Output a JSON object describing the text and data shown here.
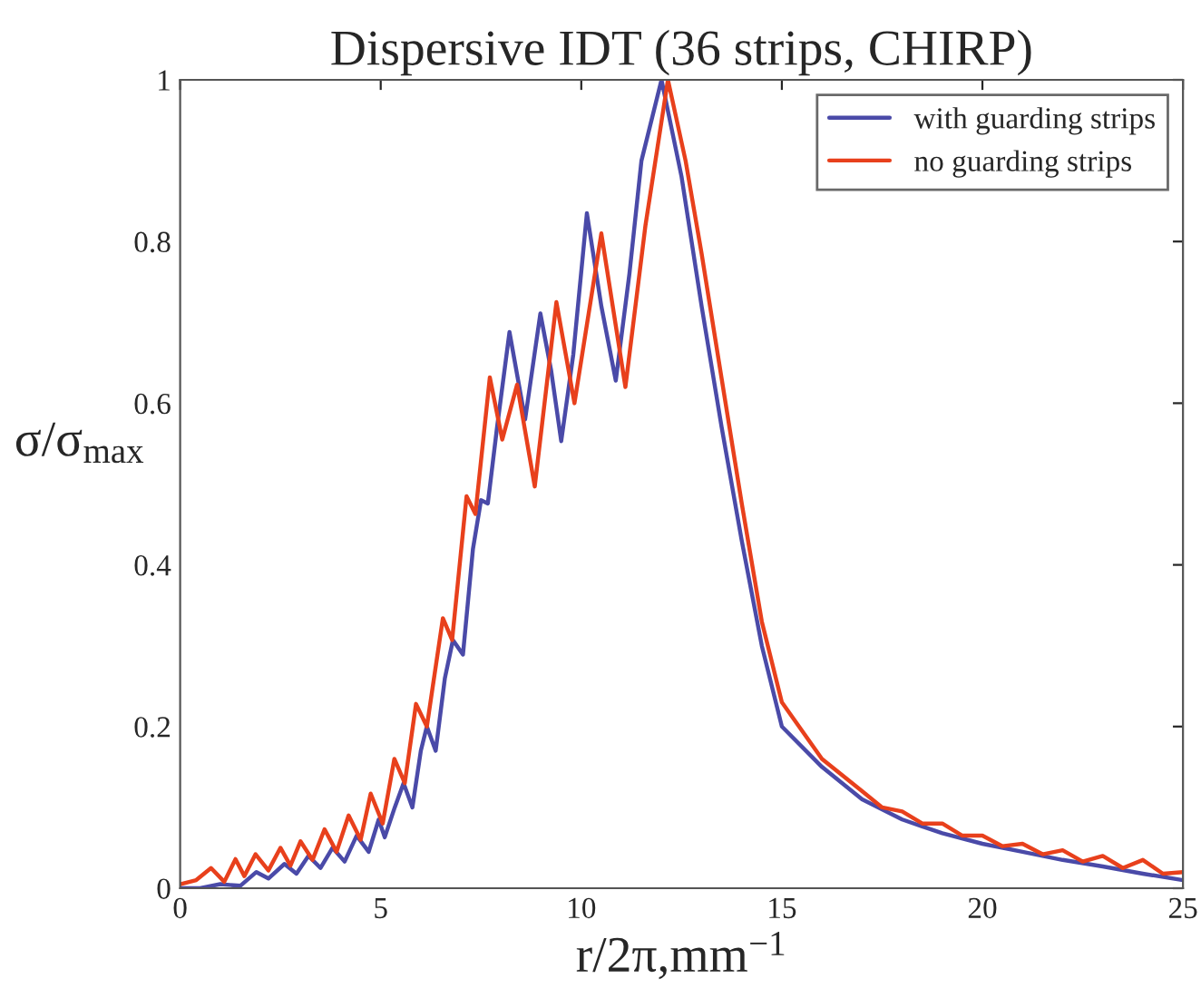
{
  "chart_data": {
    "type": "line",
    "title": "Dispersive IDT (36 strips, CHIRP)",
    "xlabel": "r/2π,mm$^{−1}$",
    "ylabel": "σ/σ$_{max}$",
    "xlim": [
      0,
      25
    ],
    "ylim": [
      0,
      1
    ],
    "xticks": [
      0,
      5,
      10,
      15,
      20,
      25
    ],
    "yticks": [
      0,
      0.2,
      0.4,
      0.6,
      0.8,
      1
    ],
    "legend": "top right",
    "grid": false,
    "series": [
      {
        "name": "with guarding strips",
        "color": "#4a4aa8",
        "x": [
          0,
          0.5,
          1,
          1.5,
          1.9,
          2.2,
          2.6,
          2.9,
          3.2,
          3.5,
          3.8,
          4.1,
          4.4,
          4.7,
          4.95,
          5.1,
          5.35,
          5.57,
          5.79,
          6.0,
          6.15,
          6.37,
          6.6,
          6.8,
          7.05,
          7.3,
          7.5,
          7.67,
          7.9,
          8.21,
          8.6,
          8.98,
          9.25,
          9.5,
          9.8,
          10.14,
          10.5,
          10.86,
          11.2,
          11.5,
          12.0,
          12.5,
          13,
          13.5,
          14,
          14.5,
          15,
          16,
          17,
          18,
          19,
          20,
          21,
          22,
          23,
          24,
          25
        ],
        "values": [
          0,
          0,
          0.005,
          0.003,
          0.02,
          0.012,
          0.03,
          0.018,
          0.04,
          0.025,
          0.05,
          0.033,
          0.065,
          0.045,
          0.085,
          0.063,
          0.1,
          0.13,
          0.1,
          0.17,
          0.2,
          0.17,
          0.26,
          0.307,
          0.289,
          0.42,
          0.48,
          0.476,
          0.57,
          0.688,
          0.58,
          0.711,
          0.64,
          0.553,
          0.66,
          0.835,
          0.72,
          0.628,
          0.76,
          0.9,
          1.0,
          0.88,
          0.72,
          0.57,
          0.43,
          0.3,
          0.2,
          0.15,
          0.11,
          0.085,
          0.068,
          0.055,
          0.045,
          0.035,
          0.027,
          0.018,
          0.01
        ]
      },
      {
        "name": "no guarding strips",
        "color": "#e8401c",
        "x": [
          0,
          0.4,
          0.77,
          1.1,
          1.38,
          1.6,
          1.88,
          2.2,
          2.5,
          2.75,
          3.0,
          3.3,
          3.6,
          3.9,
          4.2,
          4.5,
          4.75,
          5.05,
          5.34,
          5.6,
          5.88,
          6.15,
          6.55,
          6.78,
          7.14,
          7.36,
          7.72,
          8.03,
          8.4,
          8.84,
          9.38,
          9.83,
          10.5,
          11.1,
          11.6,
          12.16,
          12.6,
          13,
          13.5,
          14,
          14.5,
          15,
          16,
          17,
          17.5,
          18,
          18.5,
          19,
          19.5,
          20,
          20.5,
          21,
          21.5,
          22,
          22.5,
          23,
          23.5,
          24,
          24.5,
          25
        ],
        "values": [
          0.005,
          0.01,
          0.025,
          0.008,
          0.036,
          0.015,
          0.042,
          0.022,
          0.05,
          0.028,
          0.058,
          0.035,
          0.073,
          0.045,
          0.09,
          0.06,
          0.117,
          0.08,
          0.16,
          0.13,
          0.228,
          0.2,
          0.334,
          0.307,
          0.485,
          0.463,
          0.632,
          0.555,
          0.623,
          0.497,
          0.725,
          0.6,
          0.81,
          0.62,
          0.82,
          1.0,
          0.9,
          0.785,
          0.63,
          0.476,
          0.33,
          0.23,
          0.16,
          0.12,
          0.1,
          0.095,
          0.08,
          0.08,
          0.065,
          0.065,
          0.052,
          0.055,
          0.042,
          0.047,
          0.033,
          0.04,
          0.025,
          0.035,
          0.018,
          0.02
        ]
      }
    ]
  }
}
